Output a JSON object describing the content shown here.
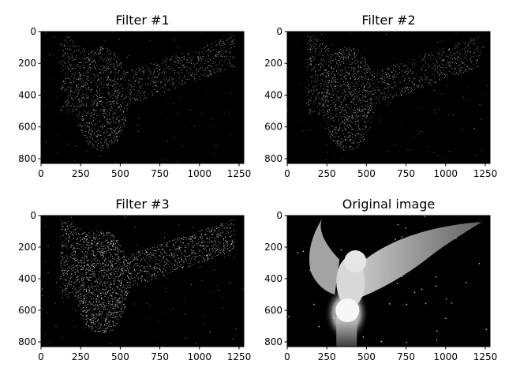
{
  "chart_data": [
    {
      "type": "image",
      "title": "Filter #1",
      "xlim": [
        0,
        1280
      ],
      "ylim": [
        830,
        0
      ],
      "xticks": [
        0,
        250,
        500,
        750,
        1000,
        1250
      ],
      "yticks": [
        0,
        200,
        400,
        600,
        800
      ],
      "content": "edge-filtered owl, sparse bright speckles on black"
    },
    {
      "type": "image",
      "title": "Filter #2",
      "xlim": [
        0,
        1280
      ],
      "ylim": [
        830,
        0
      ],
      "xticks": [
        0,
        250,
        500,
        750,
        1000,
        1250
      ],
      "yticks": [
        0,
        200,
        400,
        600,
        800
      ],
      "content": "edge-filtered owl, sparse bright speckles on black"
    },
    {
      "type": "image",
      "title": "Filter #3",
      "xlim": [
        0,
        1280
      ],
      "ylim": [
        830,
        0
      ],
      "xticks": [
        0,
        250,
        500,
        750,
        1000,
        1250
      ],
      "yticks": [
        0,
        200,
        400,
        600,
        800
      ],
      "content": "edge-filtered owl, brighter speckles on black"
    },
    {
      "type": "image",
      "title": "Original image",
      "xlim": [
        0,
        1280
      ],
      "ylim": [
        830,
        0
      ],
      "xticks": [
        0,
        250,
        500,
        750,
        1000,
        1250
      ],
      "yticks": [
        0,
        200,
        400,
        600,
        800
      ],
      "content": "grayscale owl with spread wings on glowing orb"
    }
  ]
}
